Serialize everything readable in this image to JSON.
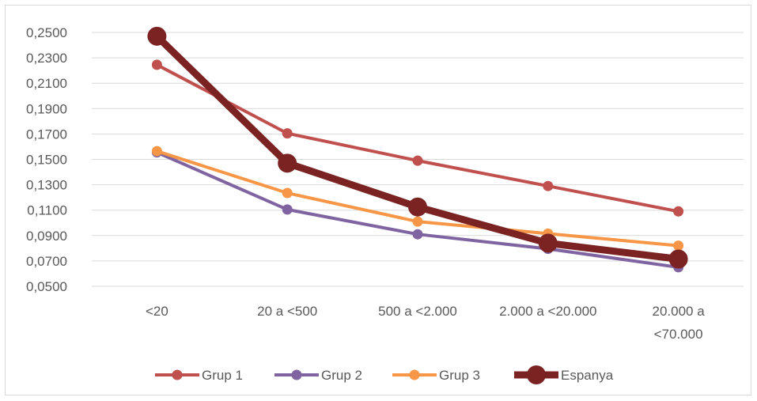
{
  "chart_data": {
    "type": "line",
    "title": "",
    "xlabel": "",
    "ylabel": "",
    "categories": [
      [
        "<20"
      ],
      [
        "20 a <500"
      ],
      [
        "500 a <2.000"
      ],
      [
        "2.000 a <20.000"
      ],
      [
        "20.000 a",
        "<70.000"
      ]
    ],
    "ylim": [
      0.05,
      0.25
    ],
    "yticks": [
      "0,0500",
      "0,0700",
      "0,0900",
      "0,1100",
      "0,1300",
      "0,1500",
      "0,1700",
      "0,1900",
      "0,2100",
      "0,2300",
      "0,2500"
    ],
    "grid": true,
    "legend_position": "bottom",
    "series": [
      {
        "name": "Grup 1",
        "color": "#c0504d",
        "values": [
          0.2245,
          0.1705,
          0.149,
          0.129,
          0.109
        ],
        "line_style": "normal"
      },
      {
        "name": "Grup 2",
        "color": "#8064a2",
        "values": [
          0.1555,
          0.1105,
          0.091,
          0.0795,
          0.065
        ],
        "line_style": "normal"
      },
      {
        "name": "Grup 3",
        "color": "#f79646",
        "values": [
          0.1565,
          0.1235,
          0.101,
          0.0915,
          0.082
        ],
        "line_style": "normal"
      },
      {
        "name": "Espanya",
        "color": "#7b2323",
        "values": [
          0.247,
          0.147,
          0.1125,
          0.084,
          0.0715
        ],
        "line_style": "bold"
      }
    ]
  }
}
